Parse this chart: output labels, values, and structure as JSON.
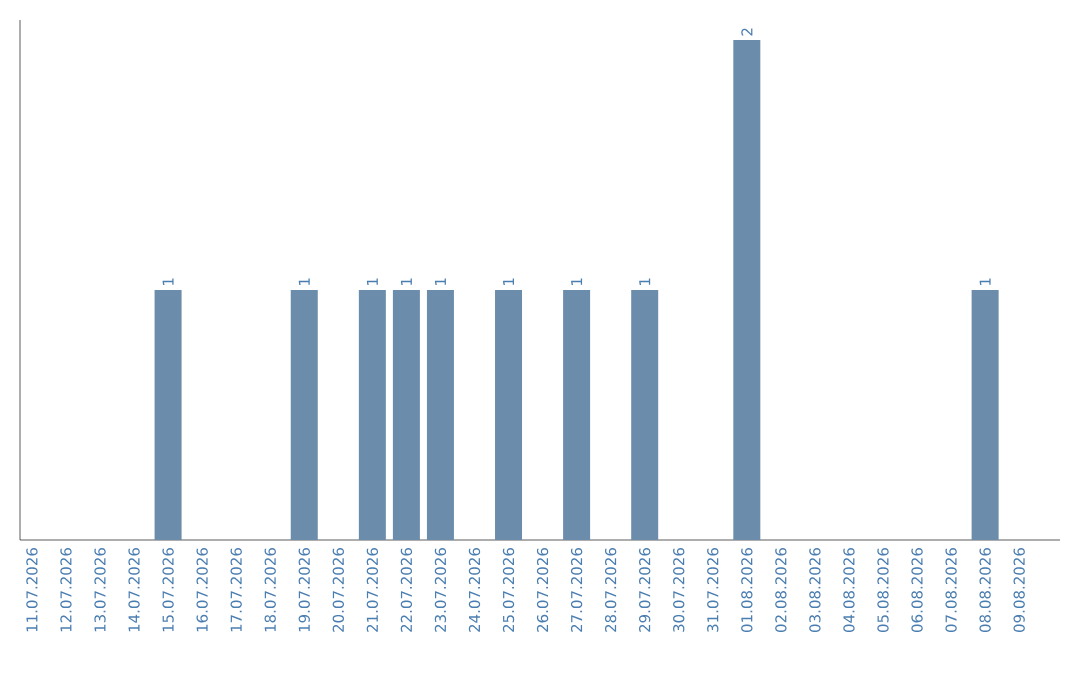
{
  "chart_data": {
    "type": "bar",
    "categories": [
      "11.07.2026",
      "12.07.2026",
      "13.07.2026",
      "14.07.2026",
      "15.07.2026",
      "16.07.2026",
      "17.07.2026",
      "18.07.2026",
      "19.07.2026",
      "20.07.2026",
      "21.07.2026",
      "22.07.2026",
      "23.07.2026",
      "24.07.2026",
      "25.07.2026",
      "26.07.2026",
      "27.07.2026",
      "28.07.2026",
      "29.07.2026",
      "30.07.2026",
      "31.07.2026",
      "01.08.2026",
      "02.08.2026",
      "03.08.2026",
      "04.08.2026",
      "05.08.2026",
      "06.08.2026",
      "07.08.2026",
      "08.08.2026",
      "09.08.2026"
    ],
    "values": [
      0,
      0,
      0,
      0,
      1,
      0,
      0,
      0,
      1,
      0,
      1,
      1,
      1,
      0,
      1,
      0,
      1,
      0,
      1,
      0,
      0,
      2,
      0,
      0,
      0,
      0,
      0,
      0,
      1,
      0
    ],
    "value_labels": [
      null,
      null,
      null,
      null,
      "1",
      null,
      null,
      null,
      "1",
      null,
      "1",
      "1",
      "1",
      null,
      "1",
      null,
      "1",
      null,
      "1",
      null,
      null,
      "2",
      null,
      null,
      null,
      null,
      null,
      null,
      "1",
      null
    ],
    "color": "#6b8caa",
    "tick_labels": "x"
  }
}
